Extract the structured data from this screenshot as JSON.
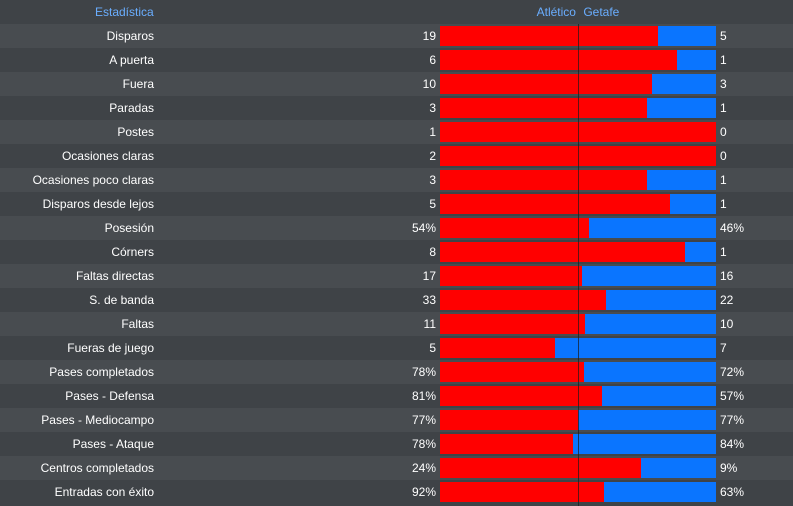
{
  "header": {
    "stat_label": "Estadística",
    "home": "Atlético",
    "away": "Getafe"
  },
  "colors": {
    "home": "#ff0000",
    "away": "#0a75ff",
    "header_text": "#6aaeff"
  },
  "rows": [
    {
      "label": "Disparos",
      "home": "19",
      "away": "5",
      "share": 0.79
    },
    {
      "label": "A puerta",
      "home": "6",
      "away": "1",
      "share": 0.857
    },
    {
      "label": "Fuera",
      "home": "10",
      "away": "3",
      "share": 0.769
    },
    {
      "label": "Paradas",
      "home": "3",
      "away": "1",
      "share": 0.75
    },
    {
      "label": "Postes",
      "home": "1",
      "away": "0",
      "share": 1.0
    },
    {
      "label": "Ocasiones claras",
      "home": "2",
      "away": "0",
      "share": 1.0
    },
    {
      "label": "Ocasiones poco claras",
      "home": "3",
      "away": "1",
      "share": 0.75
    },
    {
      "label": "Disparos desde lejos",
      "home": "5",
      "away": "1",
      "share": 0.833
    },
    {
      "label": "Posesión",
      "home": "54%",
      "away": "46%",
      "share": 0.54
    },
    {
      "label": "Córners",
      "home": "8",
      "away": "1",
      "share": 0.889
    },
    {
      "label": "Faltas directas",
      "home": "17",
      "away": "16",
      "share": 0.515
    },
    {
      "label": "S. de banda",
      "home": "33",
      "away": "22",
      "share": 0.6
    },
    {
      "label": "Faltas",
      "home": "11",
      "away": "10",
      "share": 0.524
    },
    {
      "label": "Fueras de juego",
      "home": "5",
      "away": "7",
      "share": 0.417
    },
    {
      "label": "Pases completados",
      "home": "78%",
      "away": "72%",
      "share": 0.52
    },
    {
      "label": "Pases - Defensa",
      "home": "81%",
      "away": "57%",
      "share": 0.587
    },
    {
      "label": "Pases - Mediocampo",
      "home": "77%",
      "away": "77%",
      "share": 0.5
    },
    {
      "label": "Pases - Ataque",
      "home": "78%",
      "away": "84%",
      "share": 0.481
    },
    {
      "label": "Centros completados",
      "home": "24%",
      "away": "9%",
      "share": 0.727
    },
    {
      "label": "Entradas con éxito",
      "home": "92%",
      "away": "63%",
      "share": 0.594
    }
  ]
}
